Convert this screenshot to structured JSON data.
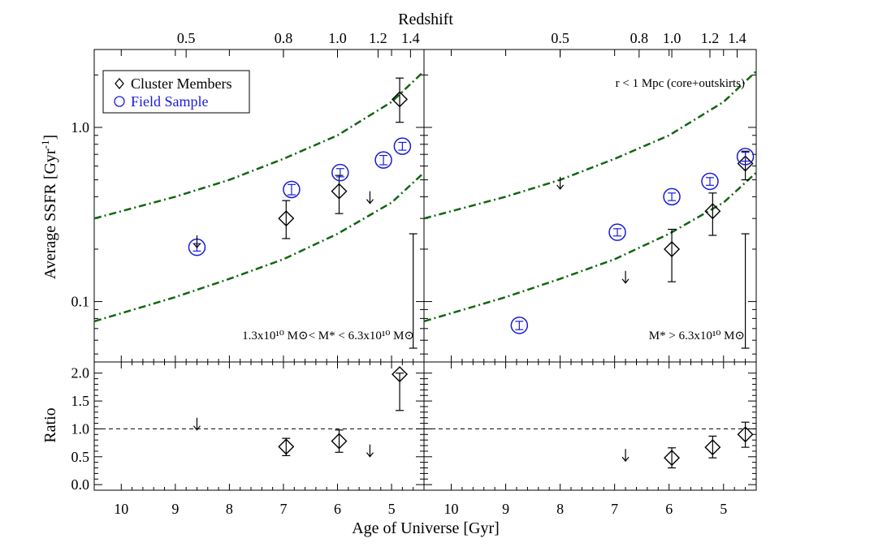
{
  "colors": {
    "field": "#1a1adc",
    "band": "#116611",
    "cluster": "#000000",
    "frame": "#000000"
  },
  "labels": {
    "top_axis_title": "Redshift",
    "bottom_axis_title": "Age of Universe [Gyr]",
    "ssfr_axis_title": "Average SSFR [Gyr",
    "ssfr_axis_title_exp": "-1",
    "ssfr_axis_title_close": "]",
    "ratio_axis_title": "Ratio",
    "legend_cluster": "Cluster Members",
    "legend_field": "Field Sample",
    "right_note": "r < 1 Mpc (core+outskirts)",
    "left_mass_label": "1.3x10¹⁰ M⊙< M* < 6.3x10¹⁰ M⊙",
    "right_mass_label": "M* > 6.3x10¹⁰ M⊙"
  },
  "chart_data": [
    {
      "panel": "left-top",
      "type": "scatter",
      "xlabel": "Age of Universe [Gyr]",
      "ylabel": "Average SSFR [Gyr^-1]",
      "yscale": "log",
      "xlim": [
        10.5,
        4.4
      ],
      "ylim": [
        0.045,
        2.8
      ],
      "x_ticks": [
        10,
        9,
        8,
        7,
        6,
        5
      ],
      "y_ticks": [
        0.1,
        1.0
      ],
      "y_tick_labels": [
        "0.1",
        "1.0"
      ],
      "top_axis": {
        "label": "Redshift",
        "ticks": [
          0.5,
          0.8,
          1.0,
          1.2,
          1.4
        ],
        "tick_labels": [
          "0.5",
          "0.8",
          "1.0",
          "1.2",
          "1.4"
        ],
        "tick_ages": [
          8.8,
          7.0,
          6.0,
          5.25,
          4.65
        ]
      },
      "series": [
        {
          "name": "Cluster Members",
          "marker": "diamond",
          "x": [
            6.95,
            5.97,
            4.85
          ],
          "y": [
            0.3,
            0.43,
            1.45
          ],
          "yerr_low": [
            0.23,
            0.32,
            1.07
          ],
          "yerr_high": [
            0.38,
            0.53,
            1.92
          ]
        },
        {
          "name": "Field Sample",
          "marker": "circle",
          "x": [
            8.6,
            6.85,
            5.95,
            5.15,
            4.8
          ],
          "y": [
            0.205,
            0.44,
            0.55,
            0.65,
            0.78
          ],
          "yerr_low": [
            0.195,
            0.41,
            0.52,
            0.61,
            0.74
          ],
          "yerr_high": [
            0.215,
            0.47,
            0.58,
            0.69,
            0.82
          ]
        }
      ],
      "upper_limits": [
        {
          "x": 8.6,
          "y": 0.24
        },
        {
          "x": 5.4,
          "y": 0.43
        }
      ],
      "systematic_error_bar": {
        "x": 4.6,
        "y_low": 0.054,
        "y_high": 0.245
      },
      "bands": [
        {
          "x": [
            10.5,
            9,
            8,
            7,
            6,
            5,
            4.4
          ],
          "y": [
            0.3,
            0.4,
            0.5,
            0.66,
            0.9,
            1.4,
            2.1
          ]
        },
        {
          "x": [
            10.5,
            9,
            8,
            7,
            6,
            5,
            4.4
          ],
          "y": [
            0.077,
            0.106,
            0.135,
            0.175,
            0.245,
            0.37,
            0.55
          ]
        }
      ],
      "legend": [
        "Cluster Members",
        "Field Sample"
      ],
      "legend_position": "top-left",
      "annotation": "1.3x10¹⁰ M⊙< M* < 6.3x10¹⁰ M⊙"
    },
    {
      "panel": "right-top",
      "type": "scatter",
      "yscale": "log",
      "xlim": [
        10.5,
        4.4
      ],
      "ylim": [
        0.045,
        2.8
      ],
      "x_ticks": [
        10,
        9,
        8,
        7,
        6,
        5
      ],
      "top_axis": {
        "label": "Redshift",
        "ticks": [
          0.5,
          0.8,
          1.0,
          1.2,
          1.4
        ],
        "tick_labels": [
          "0.5",
          "0.8",
          "1.0",
          "1.2",
          "1.4"
        ],
        "tick_ages": [
          8.0,
          6.55,
          5.95,
          5.25,
          4.75
        ]
      },
      "series": [
        {
          "name": "Cluster Members",
          "marker": "diamond",
          "x": [
            5.95,
            5.2,
            4.6
          ],
          "y": [
            0.2,
            0.33,
            0.62
          ],
          "yerr_low": [
            0.13,
            0.24,
            0.5
          ],
          "yerr_high": [
            0.26,
            0.42,
            0.73
          ]
        },
        {
          "name": "Field Sample",
          "marker": "circle",
          "x": [
            8.75,
            6.95,
            5.95,
            5.25,
            4.6
          ],
          "y": [
            0.073,
            0.25,
            0.4,
            0.49,
            0.68
          ],
          "yerr_low": [
            0.069,
            0.238,
            0.38,
            0.465,
            0.64
          ],
          "yerr_high": [
            0.077,
            0.262,
            0.42,
            0.515,
            0.72
          ]
        }
      ],
      "upper_limits": [
        {
          "x": 8.0,
          "y": 0.52
        },
        {
          "x": 6.8,
          "y": 0.15
        }
      ],
      "systematic_error_bar": {
        "x": 4.6,
        "y_low": 0.054,
        "y_high": 0.245
      },
      "bands": [
        {
          "x": [
            10.5,
            9,
            8,
            7,
            6,
            5,
            4.4
          ],
          "y": [
            0.3,
            0.4,
            0.5,
            0.66,
            0.9,
            1.4,
            2.1
          ]
        },
        {
          "x": [
            10.5,
            9,
            8,
            7,
            6,
            5,
            4.4
          ],
          "y": [
            0.077,
            0.106,
            0.135,
            0.175,
            0.245,
            0.37,
            0.55
          ]
        }
      ],
      "annotation_top": "r < 1 Mpc (core+outskirts)",
      "annotation": "M* > 6.3x10¹⁰ M⊙"
    },
    {
      "panel": "left-bottom",
      "type": "scatter",
      "ylabel": "Ratio",
      "xlim": [
        10.5,
        4.4
      ],
      "ylim": [
        -0.1,
        2.2
      ],
      "y_ticks": [
        0.0,
        0.5,
        1.0,
        1.5,
        2.0
      ],
      "y_tick_labels": [
        "0.0",
        "0.5",
        "1.0",
        "1.5",
        "2.0"
      ],
      "reference_line": 1.0,
      "series": [
        {
          "name": "Cluster Members",
          "marker": "diamond",
          "x": [
            6.95,
            5.97,
            4.85
          ],
          "y": [
            0.68,
            0.78,
            1.98
          ],
          "yerr_low": [
            0.52,
            0.58,
            1.33
          ],
          "yerr_high": [
            0.83,
            0.98,
            2.0
          ]
        }
      ],
      "upper_limits": [
        {
          "x": 8.6,
          "y": 1.2
        },
        {
          "x": 5.4,
          "y": 0.72
        }
      ]
    },
    {
      "panel": "right-bottom",
      "type": "scatter",
      "xlim": [
        10.5,
        4.4
      ],
      "ylim": [
        -0.1,
        2.2
      ],
      "y_ticks": [
        0.0,
        0.5,
        1.0,
        1.5,
        2.0
      ],
      "reference_line": 1.0,
      "series": [
        {
          "name": "Cluster Members",
          "marker": "diamond",
          "x": [
            5.95,
            5.2,
            4.6
          ],
          "y": [
            0.48,
            0.67,
            0.9
          ],
          "yerr_low": [
            0.3,
            0.48,
            0.67
          ],
          "yerr_high": [
            0.66,
            0.87,
            1.12
          ]
        }
      ],
      "upper_limits": [
        {
          "x": 6.8,
          "y": 0.64
        }
      ]
    }
  ]
}
